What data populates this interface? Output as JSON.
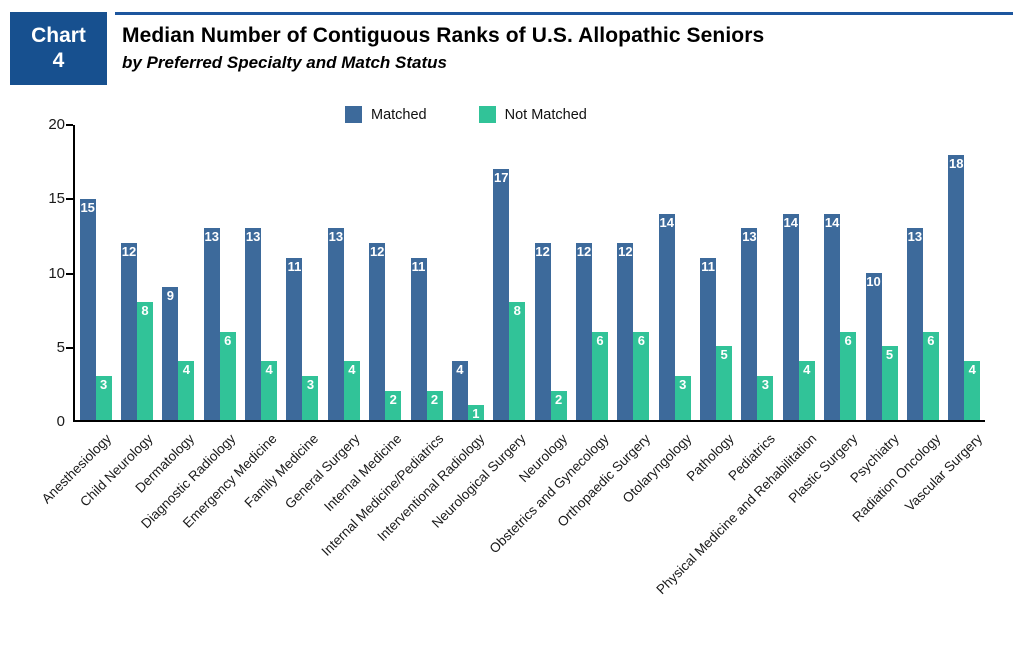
{
  "header": {
    "chart_label_line1": "Chart",
    "chart_label_line2": "4",
    "title": "Median Number of Contiguous Ranks of U.S. Allopathic Seniors",
    "subtitle": "by Preferred Specialty and Match Status"
  },
  "legend": {
    "matched_label": "Matched",
    "not_matched_label": "Not Matched"
  },
  "colors": {
    "navy_box": "#17508f",
    "top_rule": "#1d569e",
    "matched_bar": "#3d6a9b",
    "not_matched_bar": "#31c398",
    "axis": "#000000"
  },
  "chart_data": {
    "type": "bar",
    "title": "Median Number of Contiguous Ranks of U.S. Allopathic Seniors",
    "subtitle": "by Preferred Specialty and Match Status",
    "xlabel": "",
    "ylabel": "",
    "ylim": [
      0,
      20
    ],
    "yticks": [
      0,
      5,
      10,
      15,
      20
    ],
    "grid": false,
    "legend_position": "top",
    "bar_value_labels": true,
    "categories": [
      "Anesthesiology",
      "Child Neurology",
      "Dermatology",
      "Diagnostic Radiology",
      "Emergency Medicine",
      "Family Medicine",
      "General Surgery",
      "Internal Medicine",
      "Internal Medicine/Pediatrics",
      "Interventional Radiology",
      "Neurological Surgery",
      "Neurology",
      "Obstetrics and Gynecology",
      "Orthopaedic Surgery",
      "Otolaryngology",
      "Pathology",
      "Pediatrics",
      "Physical Medicine and Rehabilitation",
      "Plastic Surgery",
      "Psychiatry",
      "Radiation Oncology",
      "Vascular Surgery"
    ],
    "series": [
      {
        "name": "Matched",
        "color": "#3d6a9b",
        "values": [
          15,
          12,
          9,
          13,
          13,
          11,
          13,
          12,
          11,
          4,
          17,
          12,
          12,
          12,
          14,
          11,
          13,
          14,
          14,
          10,
          13,
          18
        ]
      },
      {
        "name": "Not Matched",
        "color": "#31c398",
        "values": [
          3,
          8,
          4,
          6,
          4,
          3,
          4,
          2,
          2,
          1,
          8,
          2,
          6,
          6,
          3,
          5,
          3,
          4,
          6,
          5,
          6,
          4
        ]
      }
    ]
  }
}
